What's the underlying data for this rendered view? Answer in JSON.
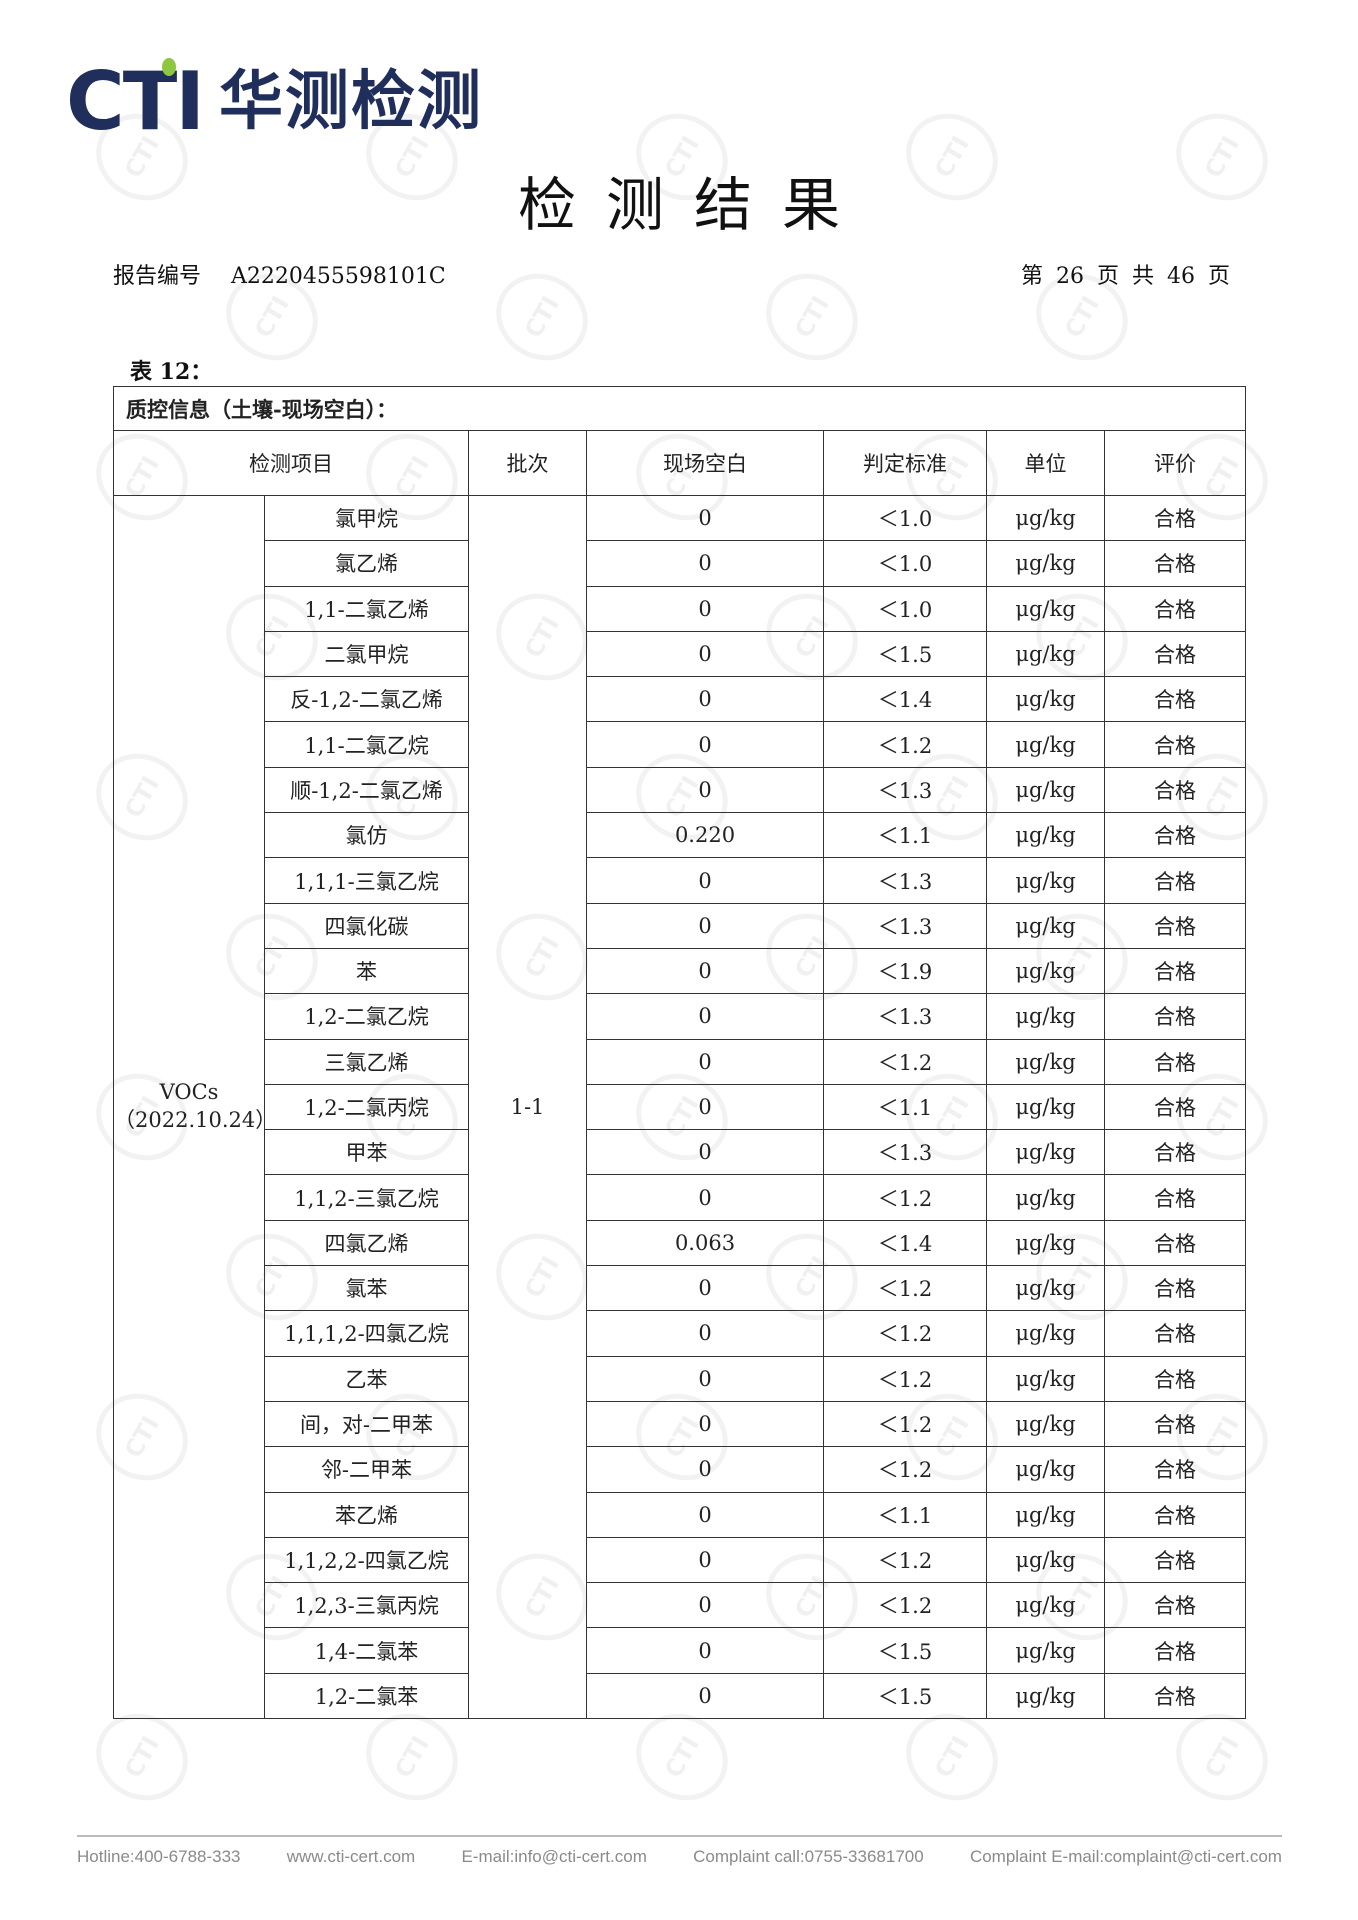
{
  "logo": {
    "brand": "CTI",
    "name_cn": "华测检测",
    "accent_color": "#8dc63f",
    "brand_color": "#1f2e5a"
  },
  "title": "检测结果",
  "report": {
    "label": "报告编号",
    "number": "A2220455598101C",
    "page_info": "第 26 页 共 46 页"
  },
  "table_label": "表 12：",
  "table": {
    "caption": "质控信息（土壤-现场空白）：",
    "headers": [
      "检测项目",
      "批次",
      "现场空白",
      "判定标准",
      "单位",
      "评价"
    ],
    "group": "VOCs",
    "group_date": "（2022.10.24）",
    "batch": "1-1",
    "rows": [
      {
        "item": "氯甲烷",
        "blank": "0",
        "standard": "＜1.0",
        "unit": "μg/kg",
        "result": "合格"
      },
      {
        "item": "氯乙烯",
        "blank": "0",
        "standard": "＜1.0",
        "unit": "μg/kg",
        "result": "合格"
      },
      {
        "item": "1,1-二氯乙烯",
        "blank": "0",
        "standard": "＜1.0",
        "unit": "μg/kg",
        "result": "合格"
      },
      {
        "item": "二氯甲烷",
        "blank": "0",
        "standard": "＜1.5",
        "unit": "μg/kg",
        "result": "合格"
      },
      {
        "item": "反-1,2-二氯乙烯",
        "blank": "0",
        "standard": "＜1.4",
        "unit": "μg/kg",
        "result": "合格"
      },
      {
        "item": "1,1-二氯乙烷",
        "blank": "0",
        "standard": "＜1.2",
        "unit": "μg/kg",
        "result": "合格"
      },
      {
        "item": "顺-1,2-二氯乙烯",
        "blank": "0",
        "standard": "＜1.3",
        "unit": "μg/kg",
        "result": "合格"
      },
      {
        "item": "氯仿",
        "blank": "0.220",
        "standard": "＜1.1",
        "unit": "μg/kg",
        "result": "合格"
      },
      {
        "item": "1,1,1-三氯乙烷",
        "blank": "0",
        "standard": "＜1.3",
        "unit": "μg/kg",
        "result": "合格"
      },
      {
        "item": "四氯化碳",
        "blank": "0",
        "standard": "＜1.3",
        "unit": "μg/kg",
        "result": "合格"
      },
      {
        "item": "苯",
        "blank": "0",
        "standard": "＜1.9",
        "unit": "μg/kg",
        "result": "合格"
      },
      {
        "item": "1,2-二氯乙烷",
        "blank": "0",
        "standard": "＜1.3",
        "unit": "μg/kg",
        "result": "合格"
      },
      {
        "item": "三氯乙烯",
        "blank": "0",
        "standard": "＜1.2",
        "unit": "μg/kg",
        "result": "合格"
      },
      {
        "item": "1,2-二氯丙烷",
        "blank": "0",
        "standard": "＜1.1",
        "unit": "μg/kg",
        "result": "合格"
      },
      {
        "item": "甲苯",
        "blank": "0",
        "standard": "＜1.3",
        "unit": "μg/kg",
        "result": "合格"
      },
      {
        "item": "1,1,2-三氯乙烷",
        "blank": "0",
        "standard": "＜1.2",
        "unit": "μg/kg",
        "result": "合格"
      },
      {
        "item": "四氯乙烯",
        "blank": "0.063",
        "standard": "＜1.4",
        "unit": "μg/kg",
        "result": "合格"
      },
      {
        "item": "氯苯",
        "blank": "0",
        "standard": "＜1.2",
        "unit": "μg/kg",
        "result": "合格"
      },
      {
        "item": "1,1,1,2-四氯乙烷",
        "blank": "0",
        "standard": "＜1.2",
        "unit": "μg/kg",
        "result": "合格"
      },
      {
        "item": "乙苯",
        "blank": "0",
        "standard": "＜1.2",
        "unit": "μg/kg",
        "result": "合格"
      },
      {
        "item": "间，对-二甲苯",
        "blank": "0",
        "standard": "＜1.2",
        "unit": "μg/kg",
        "result": "合格"
      },
      {
        "item": "邻-二甲苯",
        "blank": "0",
        "standard": "＜1.2",
        "unit": "μg/kg",
        "result": "合格"
      },
      {
        "item": "苯乙烯",
        "blank": "0",
        "standard": "＜1.1",
        "unit": "μg/kg",
        "result": "合格"
      },
      {
        "item": "1,1,2,2-四氯乙烷",
        "blank": "0",
        "standard": "＜1.2",
        "unit": "μg/kg",
        "result": "合格"
      },
      {
        "item": "1,2,3-三氯丙烷",
        "blank": "0",
        "standard": "＜1.2",
        "unit": "μg/kg",
        "result": "合格"
      },
      {
        "item": "1,4-二氯苯",
        "blank": "0",
        "standard": "＜1.5",
        "unit": "μg/kg",
        "result": "合格"
      },
      {
        "item": "1,2-二氯苯",
        "blank": "0",
        "standard": "＜1.5",
        "unit": "μg/kg",
        "result": "合格"
      }
    ]
  },
  "footer": {
    "hotline": "Hotline:400-6788-333",
    "website": "www.cti-cert.com",
    "email": "E-mail:info@cti-cert.com",
    "complaint_call": "Complaint call:0755-33681700",
    "complaint_email": "Complaint E-mail:complaint@cti-cert.com"
  }
}
